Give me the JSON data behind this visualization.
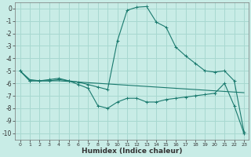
{
  "xlabel": "Humidex (Indice chaleur)",
  "bg_color": "#c8ece6",
  "grid_color": "#a8d8d0",
  "line_color": "#1a7a6e",
  "xlim": [
    -0.5,
    23.5
  ],
  "ylim": [
    -10.5,
    0.5
  ],
  "yticks": [
    0,
    -1,
    -2,
    -3,
    -4,
    -5,
    -6,
    -7,
    -8,
    -9,
    -10
  ],
  "xticks": [
    0,
    1,
    2,
    3,
    4,
    5,
    6,
    7,
    8,
    9,
    10,
    11,
    12,
    13,
    14,
    15,
    16,
    17,
    18,
    19,
    20,
    21,
    22,
    23
  ],
  "series": [
    {
      "x": [
        0,
        1,
        2,
        3,
        4,
        5,
        6,
        7,
        8,
        9,
        10,
        11,
        12,
        13,
        14,
        15,
        16,
        17,
        18,
        19,
        20,
        21,
        22,
        23
      ],
      "y": [
        -5.0,
        -5.7,
        -5.8,
        -5.8,
        -5.8,
        -5.85,
        -5.9,
        -5.95,
        -6.0,
        -6.05,
        -6.1,
        -6.15,
        -6.2,
        -6.25,
        -6.3,
        -6.35,
        -6.4,
        -6.45,
        -6.5,
        -6.55,
        -6.6,
        -6.65,
        -6.7,
        -6.75
      ],
      "marker": null
    },
    {
      "x": [
        0,
        1,
        2,
        3,
        4,
        5,
        6,
        7,
        8,
        9,
        10,
        11,
        12,
        13,
        14,
        15,
        16,
        17,
        18,
        19,
        20,
        21,
        22,
        23
      ],
      "y": [
        -5.0,
        -5.8,
        -5.8,
        -5.8,
        -5.7,
        -5.8,
        -6.1,
        -6.4,
        -7.8,
        -8.0,
        -7.5,
        -7.2,
        -7.2,
        -7.5,
        -7.5,
        -7.3,
        -7.2,
        -7.1,
        -7.0,
        -6.9,
        -6.8,
        -6.0,
        -7.8,
        -10.0
      ],
      "marker": "+"
    },
    {
      "x": [
        0,
        1,
        2,
        3,
        4,
        5,
        6,
        7,
        8,
        9,
        10,
        11,
        12,
        13,
        14,
        15,
        16,
        17,
        18,
        19,
        20,
        21,
        22,
        23
      ],
      "y": [
        -5.0,
        -5.8,
        -5.8,
        -5.7,
        -5.6,
        -5.8,
        -5.9,
        -6.1,
        -6.3,
        -6.5,
        -2.6,
        -0.15,
        0.1,
        0.15,
        -1.1,
        -1.5,
        -3.1,
        -3.8,
        -4.4,
        -5.0,
        -5.1,
        -5.0,
        -5.8,
        -9.9
      ],
      "marker": "+"
    }
  ]
}
